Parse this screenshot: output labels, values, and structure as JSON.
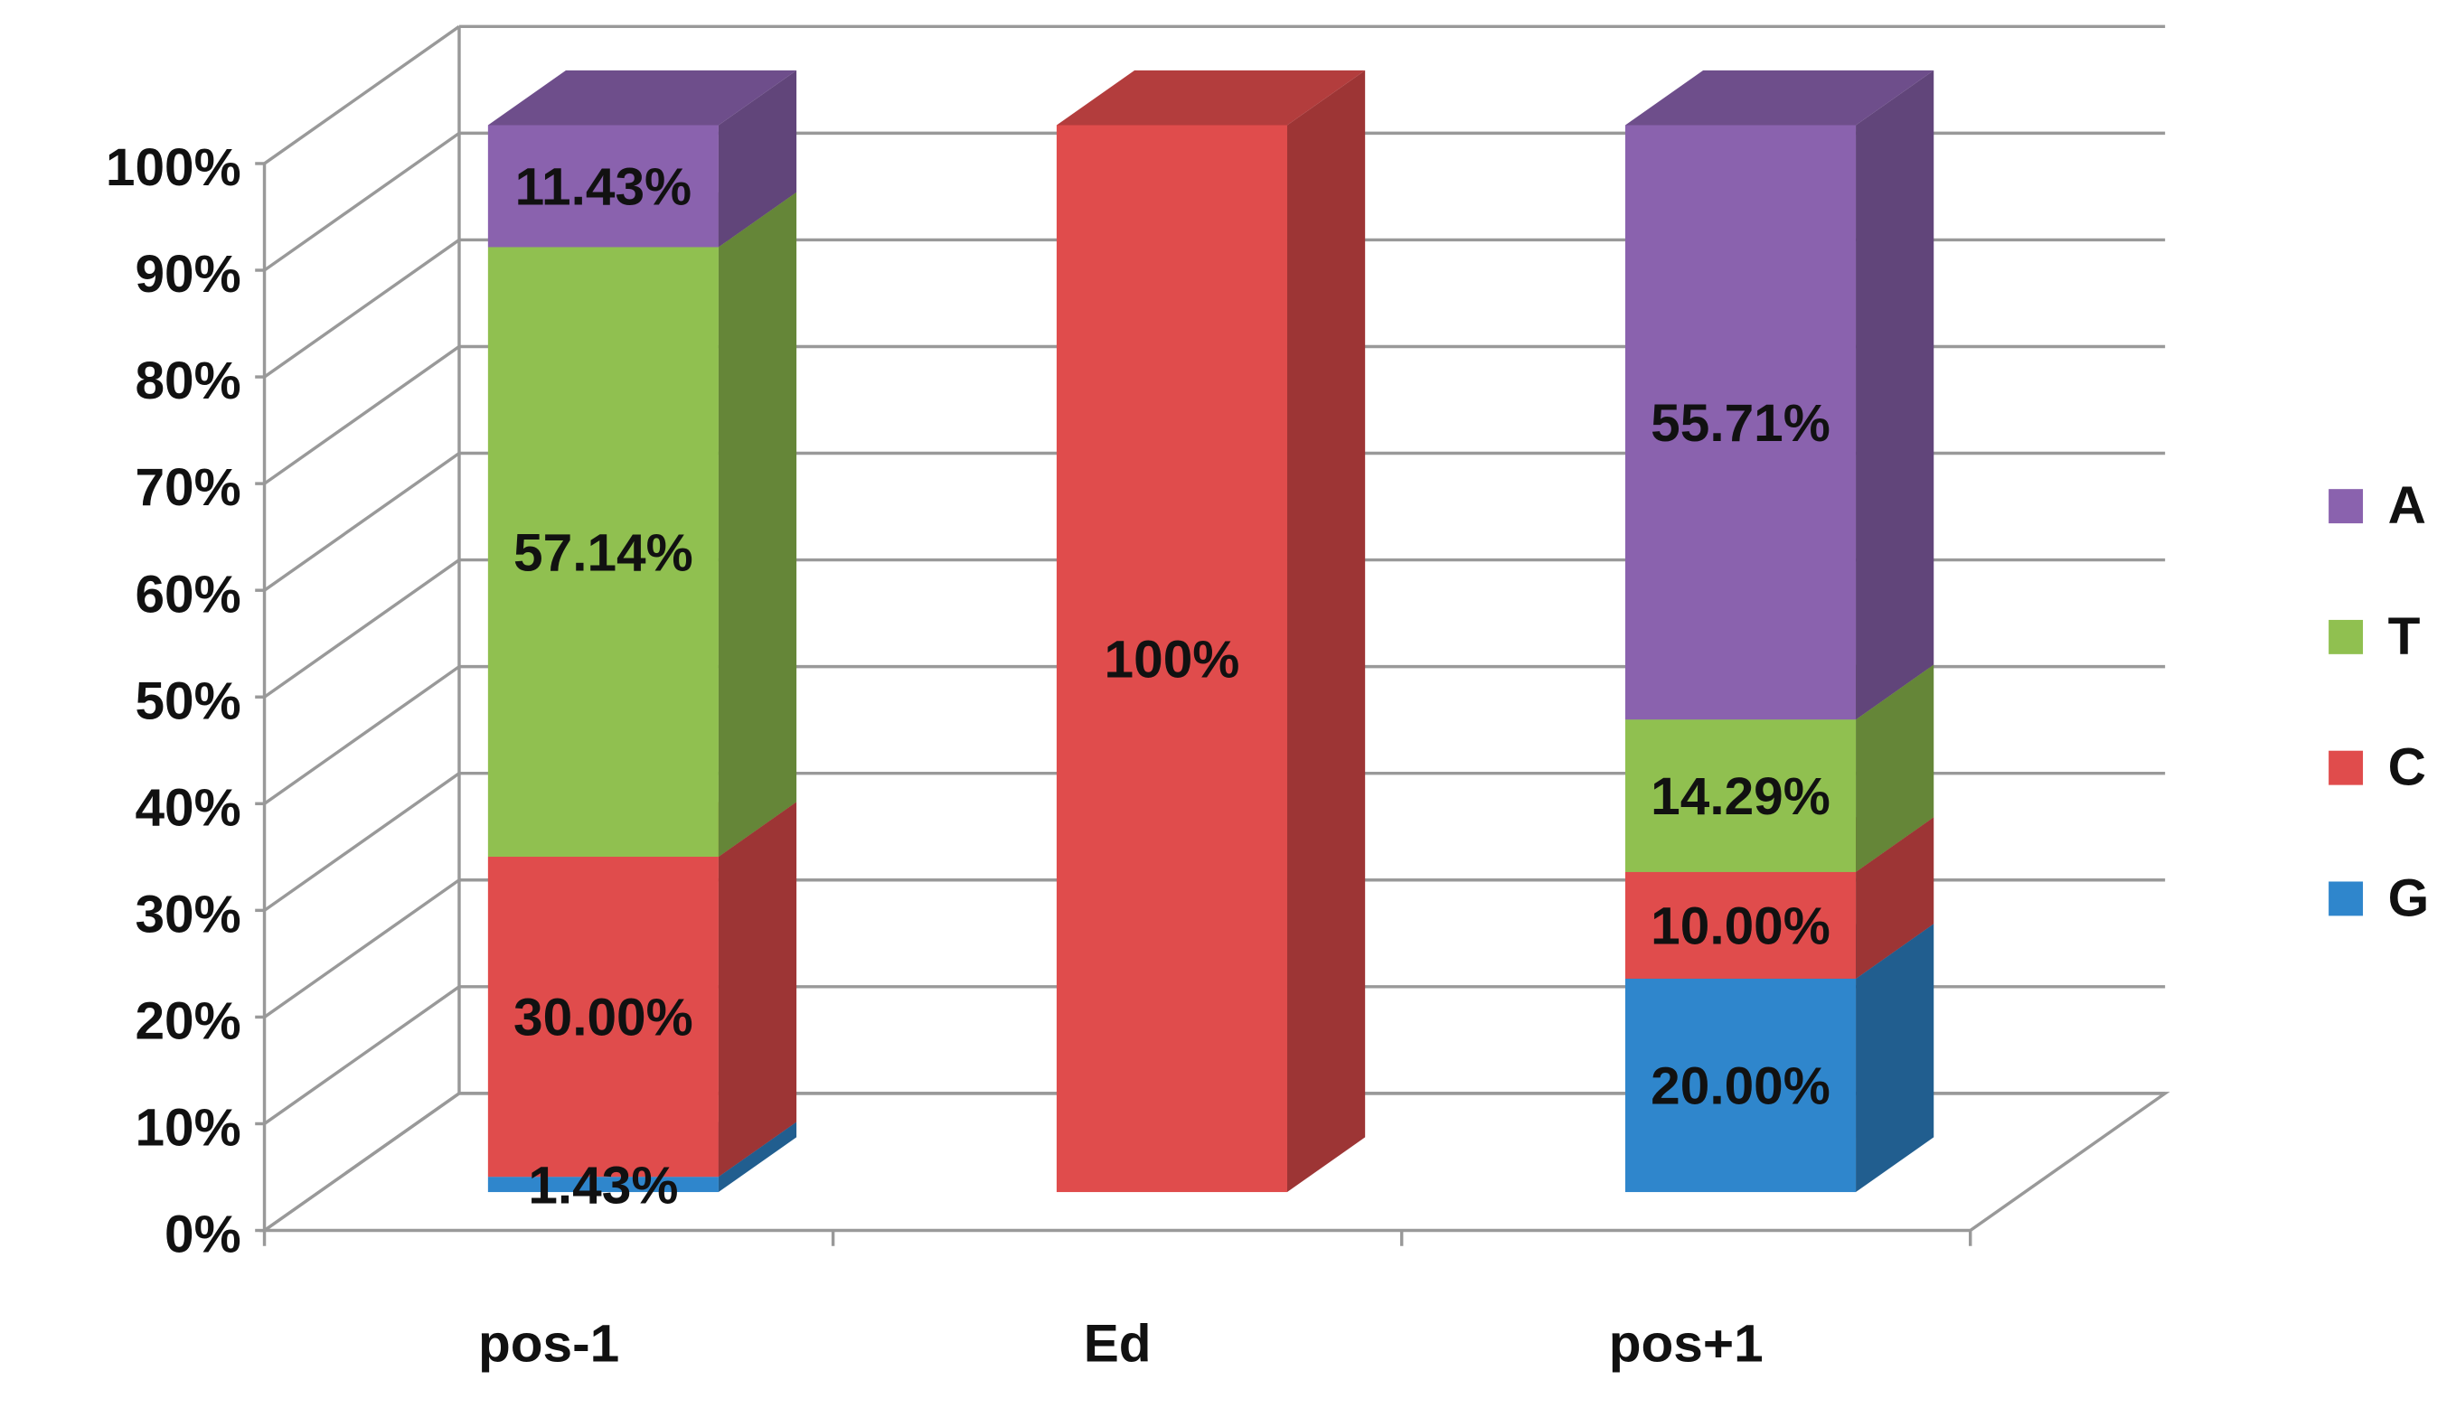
{
  "chart_data": {
    "type": "bar3d_stacked",
    "categories": [
      "pos-1",
      "Ed",
      "pos+1"
    ],
    "series": [
      {
        "name": "G",
        "color": "#2f86cc",
        "values": [
          1.43,
          0,
          20.0
        ],
        "value_labels": [
          "1.43%",
          null,
          "20.00%"
        ]
      },
      {
        "name": "C",
        "color": "#e04c4c",
        "values": [
          30.0,
          100,
          10.0
        ],
        "value_labels": [
          "30.00%",
          "100%",
          "10.00%"
        ]
      },
      {
        "name": "T",
        "color": "#90c050",
        "values": [
          57.14,
          0,
          14.29
        ],
        "value_labels": [
          "57.14%",
          null,
          "14.29%"
        ]
      },
      {
        "name": "A",
        "color": "#8a62ae",
        "values": [
          11.43,
          0,
          55.71
        ],
        "value_labels": [
          "11.43%",
          null,
          "55.71%"
        ]
      }
    ],
    "ylim": [
      0,
      100
    ],
    "yticks": [
      {
        "value": 0,
        "label": "0%"
      },
      {
        "value": 10,
        "label": "10%"
      },
      {
        "value": 20,
        "label": "20%"
      },
      {
        "value": 30,
        "label": "30%"
      },
      {
        "value": 40,
        "label": "40%"
      },
      {
        "value": 50,
        "label": "50%"
      },
      {
        "value": 60,
        "label": "60%"
      },
      {
        "value": 70,
        "label": "70%"
      },
      {
        "value": 80,
        "label": "80%"
      },
      {
        "value": 90,
        "label": "90%"
      },
      {
        "value": 100,
        "label": "100%"
      }
    ],
    "grid": true,
    "legend": "right"
  }
}
